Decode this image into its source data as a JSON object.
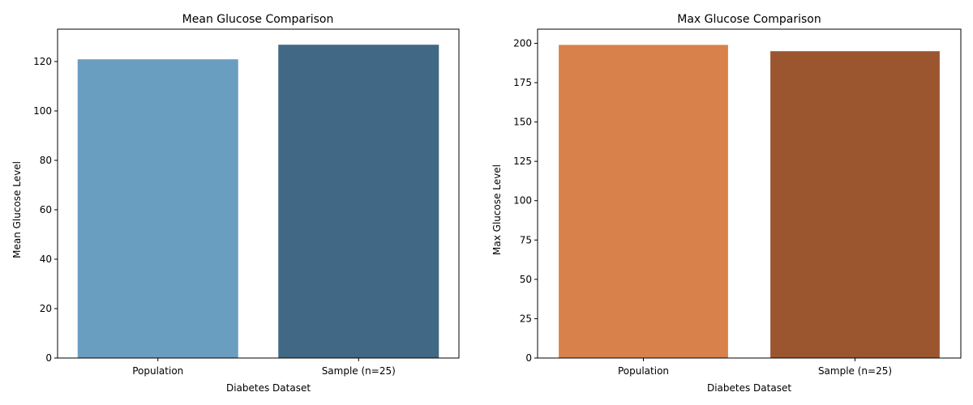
{
  "chart_data": [
    {
      "type": "bar",
      "title": "Mean Glucose Comparison",
      "xlabel": "Diabetes Dataset",
      "ylabel": "Mean Glucose Level",
      "categories": [
        "Population",
        "Sample (n=25)"
      ],
      "values": [
        120.9,
        126.8
      ],
      "ylim": [
        0,
        133.1
      ],
      "yticks": [
        0,
        20,
        40,
        60,
        80,
        100,
        120
      ],
      "colors": [
        "#6a9ec1",
        "#416885"
      ],
      "grid": false
    },
    {
      "type": "bar",
      "title": "Max Glucose Comparison",
      "xlabel": "Diabetes Dataset",
      "ylabel": "Max Glucose Level",
      "categories": [
        "Population",
        "Sample (n=25)"
      ],
      "values": [
        199,
        195
      ],
      "ylim": [
        0,
        209
      ],
      "yticks": [
        0,
        25,
        50,
        75,
        100,
        125,
        150,
        175,
        200
      ],
      "colors": [
        "#d8814a",
        "#9b5630"
      ],
      "grid": false
    }
  ]
}
